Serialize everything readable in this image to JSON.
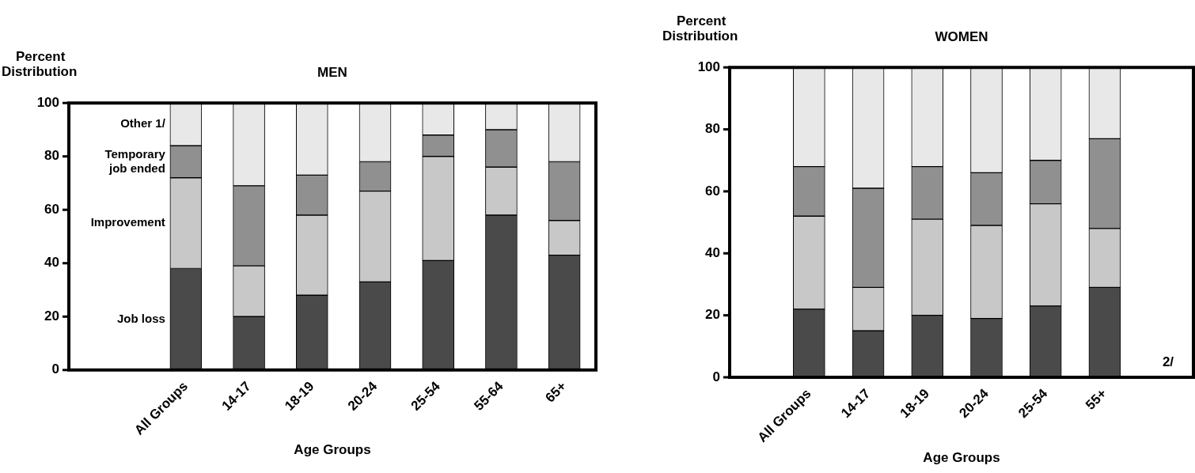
{
  "chart_data": [
    {
      "type": "bar",
      "stacked": true,
      "title": "MEN",
      "ylabel": "Percent Distribution",
      "xlabel": "Age Groups",
      "categories": [
        "All Groups",
        "14-17",
        "18-19",
        "20-24",
        "25-54",
        "55-64",
        "65+"
      ],
      "ylim": [
        0,
        100
      ],
      "yticks": [
        0,
        20,
        40,
        60,
        80,
        100
      ],
      "grid": false,
      "legend": false,
      "series": [
        {
          "name": "Job loss",
          "color": "#4a4a4a",
          "values": [
            38,
            20,
            28,
            33,
            41,
            58,
            43
          ]
        },
        {
          "name": "Improvement",
          "color": "#c8c8c8",
          "values": [
            34,
            19,
            30,
            34,
            39,
            18,
            13
          ]
        },
        {
          "name": "Temporary job ended",
          "color": "#909090",
          "values": [
            12,
            30,
            15,
            11,
            8,
            14,
            22
          ]
        },
        {
          "name": "Other 1/",
          "color": "#e8e8e8",
          "values": [
            16,
            31,
            27,
            22,
            12,
            10,
            22
          ]
        }
      ]
    },
    {
      "type": "bar",
      "stacked": true,
      "title": "WOMEN",
      "ylabel": "Percent Distribution",
      "xlabel": "Age Groups",
      "categories": [
        "All Groups",
        "14-17",
        "18-19",
        "20-24",
        "25-54",
        "55+",
        null
      ],
      "ylim": [
        0,
        100
      ],
      "yticks": [
        0,
        20,
        40,
        60,
        80,
        100
      ],
      "grid": false,
      "legend": false,
      "annotations": [
        "2/"
      ],
      "series": [
        {
          "color": "#4a4a4a",
          "values": [
            22,
            15,
            20,
            19,
            23,
            29,
            null
          ]
        },
        {
          "color": "#c8c8c8",
          "values": [
            30,
            14,
            31,
            30,
            33,
            19,
            null
          ]
        },
        {
          "color": "#909090",
          "values": [
            16,
            32,
            17,
            17,
            14,
            29,
            null
          ]
        },
        {
          "color": "#e8e8e8",
          "values": [
            32,
            39,
            32,
            34,
            30,
            23,
            null
          ]
        }
      ]
    }
  ]
}
